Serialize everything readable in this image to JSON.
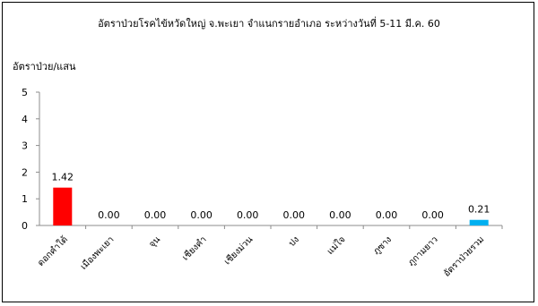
{
  "chart_data": {
    "type": "bar",
    "title": "อัตราป่วยโรคไข้หวัดใหญ่ จ.พะเยา จำแนกรายอำเภอ ระหว่างวันที่ 5-11 มี.ค. 60",
    "ylabel": "อัตราป่วย/แสน",
    "xlabel": "",
    "categories": [
      "ดอกคำใต้",
      "เมืองพะเยา",
      "จุน",
      "เชียงคำ",
      "เชียงม่วน",
      "ปง",
      "แม่ใจ",
      "ภูซาง",
      "ภูกามยาว",
      "อัตราป่วยรวม"
    ],
    "values": [
      1.42,
      0,
      0,
      0,
      0,
      0,
      0,
      0,
      0,
      0.21
    ],
    "value_labels": [
      "1.42",
      "0.00",
      "0.00",
      "0.00",
      "0.00",
      "0.00",
      "0.00",
      "0.00",
      "0.00",
      "0.21"
    ],
    "bar_colors": [
      "#ff0000",
      "#ff0000",
      "#ff0000",
      "#ff0000",
      "#ff0000",
      "#ff0000",
      "#ff0000",
      "#ff0000",
      "#ff0000",
      "#00b0f0"
    ],
    "ylim": [
      0,
      5
    ],
    "yticks": [
      "0",
      "1",
      "2",
      "3",
      "4",
      "5"
    ],
    "grid": false,
    "legend": "none"
  }
}
